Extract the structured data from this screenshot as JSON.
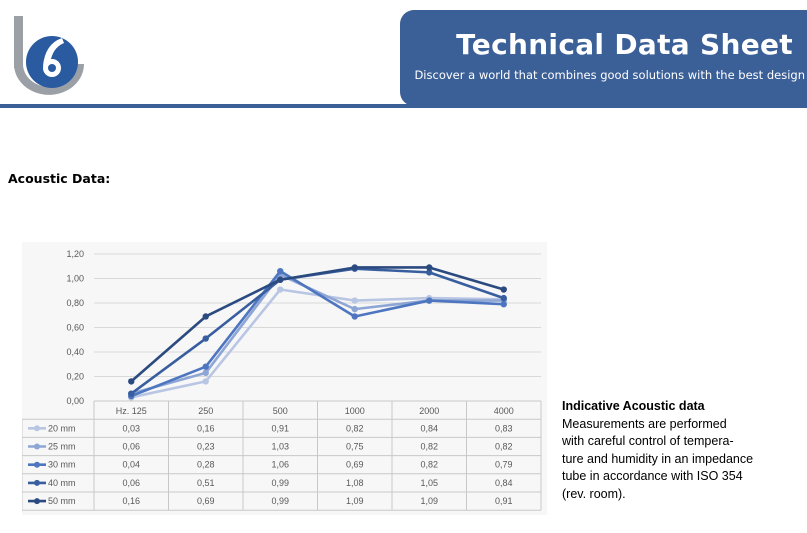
{
  "header": {
    "title": "Technical Data Sheet",
    "subtitle": "Discover a world that combines good solutions with the best design"
  },
  "colors": {
    "brand_blue": "#3b5f97",
    "logo_gray": "#9aa0a6",
    "logo_blue": "#2a5aa0"
  },
  "section": {
    "title": "Acoustic Data:"
  },
  "note": {
    "title": "Indicative Acoustic data",
    "body": "Measurements are performed\nwith careful control of tempera-\nture and humidity in an impedance\ntube in accordance with ISO 354\n(rev. room)."
  },
  "chart_data": {
    "type": "line",
    "xlabel": "Hz.",
    "categories": [
      "125",
      "250",
      "500",
      "1000",
      "2000",
      "4000"
    ],
    "category_header_first": "Hz. 125",
    "ylim": [
      0,
      1.2
    ],
    "yticks": [
      "0,00",
      "0,20",
      "0,40",
      "0,60",
      "0,80",
      "1,00",
      "1,20"
    ],
    "grid": true,
    "legend_placement": "table-left",
    "series": [
      {
        "name": "20 mm",
        "color": "#b9c6e3",
        "values": [
          0.03,
          0.16,
          0.91,
          0.82,
          0.84,
          0.83
        ],
        "labels": [
          "0,03",
          "0,16",
          "0,91",
          "0,82",
          "0,84",
          "0,83"
        ]
      },
      {
        "name": "25 mm",
        "color": "#8ea6d6",
        "values": [
          0.06,
          0.23,
          1.03,
          0.75,
          0.82,
          0.82
        ],
        "labels": [
          "0,06",
          "0,23",
          "1,03",
          "0,75",
          "0,82",
          "0,82"
        ]
      },
      {
        "name": "30 mm",
        "color": "#4e76c0",
        "values": [
          0.04,
          0.28,
          1.06,
          0.69,
          0.82,
          0.79
        ],
        "labels": [
          "0,04",
          "0,28",
          "1,06",
          "0,69",
          "0,82",
          "0,79"
        ]
      },
      {
        "name": "40 mm",
        "color": "#385e9f",
        "values": [
          0.06,
          0.51,
          0.99,
          1.08,
          1.05,
          0.84
        ],
        "labels": [
          "0,06",
          "0,51",
          "0,99",
          "1,08",
          "1,05",
          "0,84"
        ]
      },
      {
        "name": "50 mm",
        "color": "#2b4a80",
        "values": [
          0.16,
          0.69,
          0.99,
          1.09,
          1.09,
          0.91
        ],
        "labels": [
          "0,16",
          "0,69",
          "0,99",
          "1,09",
          "1,09",
          "0,91"
        ]
      }
    ]
  }
}
